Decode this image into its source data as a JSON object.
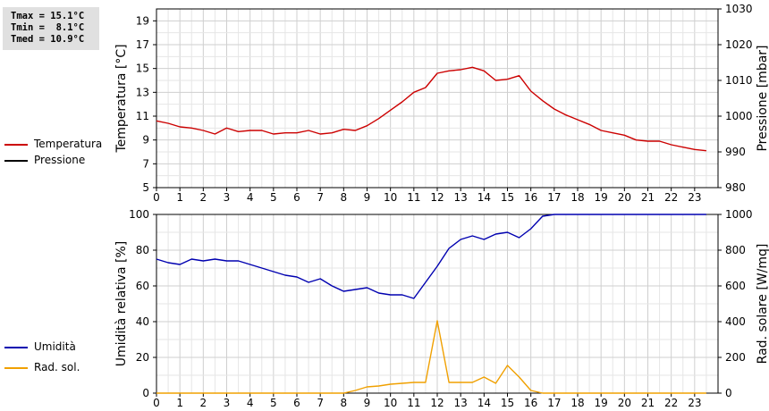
{
  "stats": {
    "tmax": "Tmax = 15.1°C",
    "tmin": "Tmin =  8.1°C",
    "tmed": "Tmed = 10.9°C"
  },
  "legend_top": [
    {
      "label": "Temperatura",
      "color": "#cc0000"
    },
    {
      "label": "Pressione",
      "color": "#000000"
    }
  ],
  "legend_bottom": [
    {
      "label": "Umidità",
      "color": "#0000b0"
    },
    {
      "label": "Rad. sol.",
      "color": "#f0a000"
    }
  ],
  "chart_data": [
    {
      "type": "line",
      "xlabel": "",
      "ylabel": "Temperatura [°C]",
      "y2label": "Pressione [mbar]",
      "xlim": [
        0,
        24
      ],
      "xticks": [
        "0",
        "1",
        "2",
        "3",
        "4",
        "5",
        "6",
        "7",
        "8",
        "9",
        "10",
        "11",
        "12",
        "13",
        "14",
        "15",
        "16",
        "17",
        "18",
        "19",
        "20",
        "21",
        "22",
        "23"
      ],
      "ylim": [
        5,
        20
      ],
      "yticks": [
        "5",
        "7",
        "9",
        "11",
        "13",
        "15",
        "17",
        "19"
      ],
      "y2lim": [
        980,
        1030
      ],
      "y2ticks": [
        "980",
        "990",
        "1000",
        "1010",
        "1020",
        "1030"
      ],
      "grid": true,
      "series": [
        {
          "name": "Temperatura",
          "color": "#cc0000",
          "axis": "left",
          "x": [
            0,
            0.5,
            1,
            1.5,
            2,
            2.5,
            3,
            3.5,
            4,
            4.5,
            5,
            5.5,
            6,
            6.5,
            7,
            7.5,
            8,
            8.5,
            9,
            9.5,
            10,
            10.5,
            11,
            11.5,
            12,
            12.5,
            13,
            13.5,
            14,
            14.5,
            15,
            15.5,
            16,
            16.5,
            17,
            17.5,
            18,
            18.5,
            19,
            19.5,
            20,
            20.5,
            21,
            21.5,
            22,
            22.5,
            23,
            23.5
          ],
          "values": [
            10.6,
            10.4,
            10.1,
            10.0,
            9.8,
            9.5,
            10.0,
            9.7,
            9.8,
            9.8,
            9.5,
            9.6,
            9.6,
            9.8,
            9.5,
            9.6,
            9.9,
            9.8,
            10.2,
            10.8,
            11.5,
            12.2,
            13.0,
            13.4,
            14.6,
            14.8,
            14.9,
            15.1,
            14.8,
            14.0,
            14.1,
            14.4,
            13.1,
            12.3,
            11.6,
            11.1,
            10.7,
            10.3,
            9.8,
            9.6,
            9.4,
            9.0,
            8.9,
            8.9,
            8.6,
            8.4,
            8.2,
            8.1
          ]
        }
      ]
    },
    {
      "type": "line",
      "xlabel": "",
      "ylabel": "Umidità relativa [%]",
      "y2label": "Rad. solare [W/mq]",
      "xlim": [
        0,
        24
      ],
      "xticks": [
        "0",
        "1",
        "2",
        "3",
        "4",
        "5",
        "6",
        "7",
        "8",
        "9",
        "10",
        "11",
        "12",
        "13",
        "14",
        "15",
        "16",
        "17",
        "18",
        "19",
        "20",
        "21",
        "22",
        "23"
      ],
      "ylim": [
        0,
        100
      ],
      "yticks": [
        "0",
        "20",
        "40",
        "60",
        "80",
        "100"
      ],
      "y2lim": [
        0,
        1000
      ],
      "y2ticks": [
        "0",
        "200",
        "400",
        "600",
        "800",
        "1000"
      ],
      "grid": true,
      "series": [
        {
          "name": "Umidità",
          "color": "#0000b0",
          "axis": "left",
          "x": [
            0,
            0.5,
            1,
            1.5,
            2,
            2.5,
            3,
            3.5,
            4,
            4.5,
            5,
            5.5,
            6,
            6.5,
            7,
            7.5,
            8,
            8.5,
            9,
            9.5,
            10,
            10.5,
            11,
            11.5,
            12,
            12.5,
            13,
            13.5,
            14,
            14.5,
            15,
            15.5,
            16,
            16.5,
            17,
            17.5,
            18,
            18.5,
            19,
            19.5,
            20,
            20.5,
            21,
            21.5,
            22,
            22.5,
            23,
            23.5
          ],
          "values": [
            75,
            73,
            72,
            75,
            74,
            75,
            74,
            74,
            72,
            70,
            68,
            66,
            65,
            62,
            64,
            60,
            57,
            58,
            59,
            56,
            55,
            55,
            53,
            62,
            71,
            81,
            86,
            88,
            86,
            89,
            90,
            87,
            92,
            99,
            100,
            100,
            100,
            100,
            100,
            100,
            100,
            100,
            100,
            100,
            100,
            100,
            100,
            100
          ]
        },
        {
          "name": "Rad. sol.",
          "color": "#f0a000",
          "axis": "right",
          "x": [
            0,
            0.5,
            1,
            1.5,
            2,
            2.5,
            3,
            3.5,
            4,
            4.5,
            5,
            5.5,
            6,
            6.5,
            7,
            7.5,
            8,
            8.5,
            9,
            9.5,
            10,
            10.5,
            11,
            11.5,
            12,
            12.5,
            13,
            13.5,
            14,
            14.5,
            15,
            15.5,
            16,
            16.5,
            17,
            17.5,
            18,
            18.5,
            19,
            19.5,
            20,
            20.5,
            21,
            21.5,
            22,
            22.5,
            23,
            23.5
          ],
          "values": [
            0,
            0,
            0,
            0,
            0,
            0,
            0,
            0,
            0,
            0,
            0,
            0,
            0,
            0,
            0,
            0,
            0,
            15,
            35,
            40,
            50,
            55,
            60,
            60,
            405,
            60,
            60,
            60,
            90,
            55,
            155,
            90,
            15,
            0,
            0,
            0,
            0,
            0,
            0,
            0,
            0,
            0,
            0,
            0,
            0,
            0,
            0,
            0
          ]
        }
      ]
    }
  ]
}
